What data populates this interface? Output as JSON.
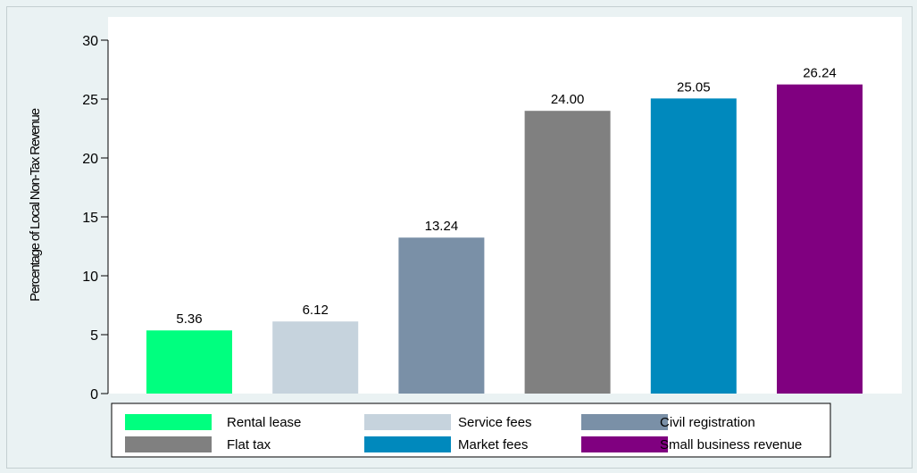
{
  "chart_data": {
    "type": "bar",
    "title": "",
    "xlabel": "",
    "ylabel": "Percentage of Local Non-Tax Revenue",
    "ylim": [
      0,
      30
    ],
    "yticks": [
      0,
      5,
      10,
      15,
      20,
      25,
      30
    ],
    "grid": false,
    "legend_position": "bottom",
    "series": [
      {
        "name": "Rental lease",
        "value": 5.36,
        "label": "5.36",
        "color": "#00ff7f"
      },
      {
        "name": "Service fees",
        "value": 6.12,
        "label": "6.12",
        "color": "#c6d3dd"
      },
      {
        "name": "Civil registration",
        "value": 13.24,
        "label": "13.24",
        "color": "#7a90a7"
      },
      {
        "name": "Flat tax",
        "value": 24.0,
        "label": "24.00",
        "color": "#808080"
      },
      {
        "name": "Market fees",
        "value": 25.05,
        "label": "25.05",
        "color": "#0089bd"
      },
      {
        "name": "Small business revenue",
        "value": 26.24,
        "label": "26.24",
        "color": "#800080"
      }
    ]
  }
}
